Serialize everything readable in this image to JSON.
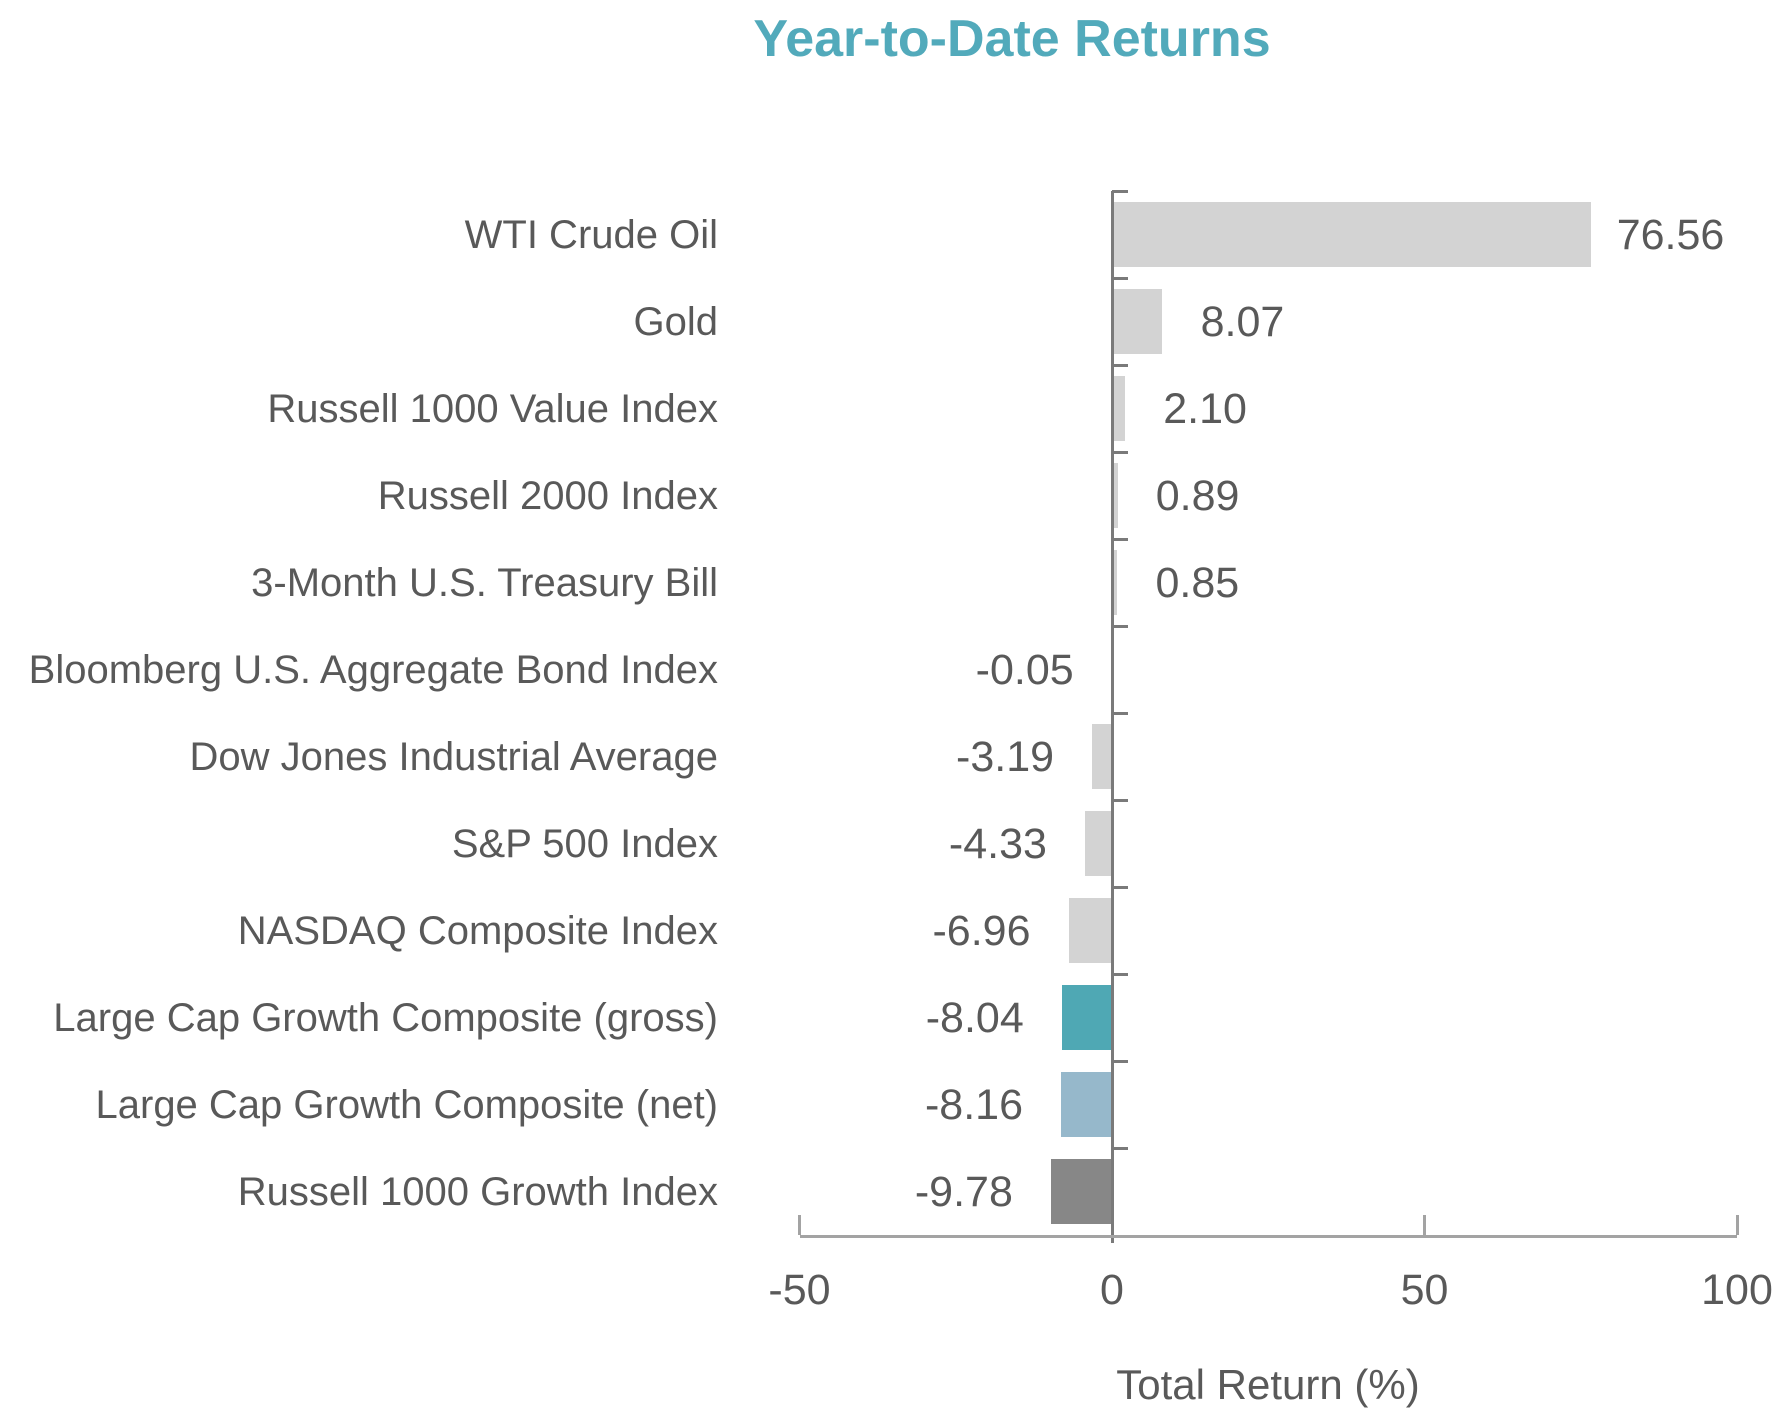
{
  "title": "Year-to-Date Returns",
  "colors": {
    "title": "#52AABB",
    "text": "#595959",
    "default_bar": "#D3D3D3",
    "highlight_gross": "#4FA8B4",
    "highlight_net": "#96B8CB",
    "highlight_benchmark": "#878787",
    "category_axis_line": "#7A7A7A",
    "value_axis_line": "#A3A3A3"
  },
  "chart_data": {
    "type": "bar",
    "orientation": "horizontal",
    "title": "Year-to-Date Returns",
    "xlabel": "Total Return (%)",
    "ylabel": "",
    "categories": [
      "WTI Crude Oil",
      "Gold",
      "Russell 1000 Value Index",
      "Russell 2000 Index",
      "3-Month U.S. Treasury Bill",
      "Bloomberg U.S. Aggregate Bond Index",
      "Dow Jones Industrial Average",
      "S&P 500 Index",
      "NASDAQ Composite Index",
      "Large Cap Growth Composite (gross)",
      "Large Cap Growth Composite (net)",
      "Russell 1000 Growth Index"
    ],
    "values": [
      76.56,
      8.07,
      2.1,
      0.89,
      0.85,
      -0.05,
      -3.19,
      -4.33,
      -6.96,
      -8.04,
      -8.16,
      -9.78
    ],
    "value_labels": [
      "76.56",
      "8.07",
      "2.10",
      "0.89",
      "0.85",
      "-0.05",
      "-3.19",
      "-4.33",
      "-6.96",
      "-8.04",
      "-8.16",
      "-9.78"
    ],
    "bar_colors": [
      "#D3D3D3",
      "#D3D3D3",
      "#D3D3D3",
      "#D3D3D3",
      "#D3D3D3",
      "#D3D3D3",
      "#D3D3D3",
      "#D3D3D3",
      "#D3D3D3",
      "#4FA8B4",
      "#96B8CB",
      "#878787"
    ],
    "xlim": [
      -50,
      100
    ],
    "x_ticks": [
      -50,
      0,
      50,
      100
    ],
    "x_tick_labels": [
      "-50",
      "0",
      "50",
      "100"
    ],
    "grid": false,
    "legend": false
  }
}
